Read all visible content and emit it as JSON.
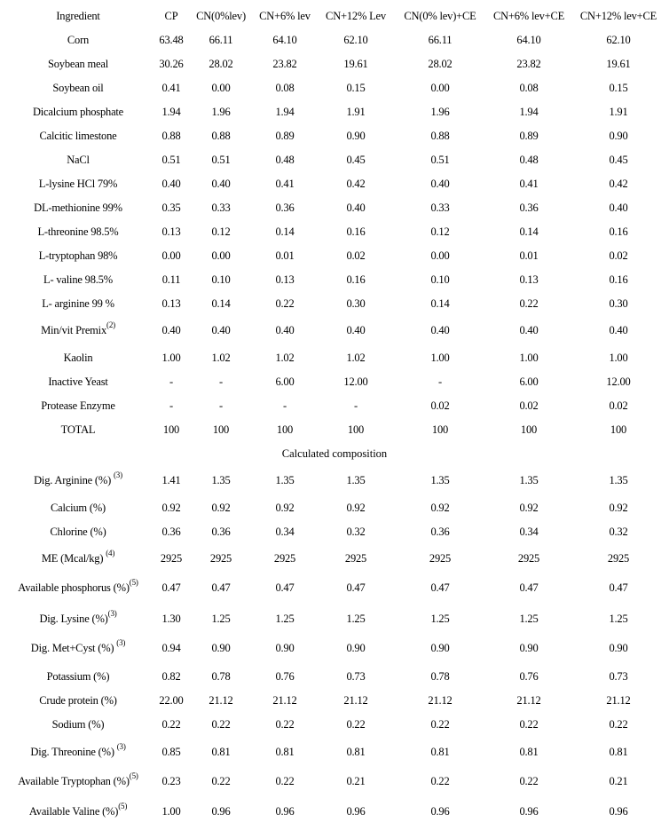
{
  "table": {
    "headers": [
      "Ingredient",
      "CP",
      "CN(0%lev)",
      "CN+6% lev",
      "CN+12% Lev",
      "CN(0% lev)+CE",
      "CN+6% lev+CE",
      "CN+12% lev+CE"
    ],
    "ingredients": [
      {
        "label": "Corn",
        "note": "",
        "values": [
          "63.48",
          "66.11",
          "64.10",
          "62.10",
          "66.11",
          "64.10",
          "62.10"
        ]
      },
      {
        "label": "Soybean meal",
        "note": "",
        "values": [
          "30.26",
          "28.02",
          "23.82",
          "19.61",
          "28.02",
          "23.82",
          "19.61"
        ]
      },
      {
        "label": "Soybean oil",
        "note": "",
        "values": [
          "0.41",
          "0.00",
          "0.08",
          "0.15",
          "0.00",
          "0.08",
          "0.15"
        ]
      },
      {
        "label": "Dicalcium phosphate",
        "note": "",
        "values": [
          "1.94",
          "1.96",
          "1.94",
          "1.91",
          "1.96",
          "1.94",
          "1.91"
        ]
      },
      {
        "label": "Calcitic limestone",
        "note": "",
        "values": [
          "0.88",
          "0.88",
          "0.89",
          "0.90",
          "0.88",
          "0.89",
          "0.90"
        ]
      },
      {
        "label": "NaCl",
        "note": "",
        "values": [
          "0.51",
          "0.51",
          "0.48",
          "0.45",
          "0.51",
          "0.48",
          "0.45"
        ]
      },
      {
        "label": "L-lysine HCl 79%",
        "note": "",
        "values": [
          "0.40",
          "0.40",
          "0.41",
          "0.42",
          "0.40",
          "0.41",
          "0.42"
        ]
      },
      {
        "label": "DL-methionine 99%",
        "note": "",
        "values": [
          "0.35",
          "0.33",
          "0.36",
          "0.40",
          "0.33",
          "0.36",
          "0.40"
        ]
      },
      {
        "label": "L-threonine 98.5%",
        "note": "",
        "values": [
          "0.13",
          "0.12",
          "0.14",
          "0.16",
          "0.12",
          "0.14",
          "0.16"
        ]
      },
      {
        "label": "L-tryptophan 98%",
        "note": "",
        "values": [
          "0.00",
          "0.00",
          "0.01",
          "0.02",
          "0.00",
          "0.01",
          "0.02"
        ]
      },
      {
        "label": "L- valine 98.5%",
        "note": "",
        "values": [
          "0.11",
          "0.10",
          "0.13",
          "0.16",
          "0.10",
          "0.13",
          "0.16"
        ]
      },
      {
        "label": "L- arginine 99 %",
        "note": "",
        "values": [
          "0.13",
          "0.14",
          "0.22",
          "0.30",
          "0.14",
          "0.22",
          "0.30"
        ]
      },
      {
        "label": "Min/vit Premix",
        "note": "(2)",
        "values": [
          "0.40",
          "0.40",
          "0.40",
          "0.40",
          "0.40",
          "0.40",
          "0.40"
        ]
      },
      {
        "label": "Kaolin",
        "note": "",
        "values": [
          "1.00",
          "1.02",
          "1.02",
          "1.02",
          "1.00",
          "1.00",
          "1.00"
        ]
      },
      {
        "label": "Inactive Yeast",
        "note": "",
        "values": [
          "-",
          "-",
          "6.00",
          "12.00",
          "-",
          "6.00",
          "12.00"
        ]
      },
      {
        "label": "Protease Enzyme",
        "note": "",
        "values": [
          "-",
          "-",
          "-",
          "-",
          "0.02",
          "0.02",
          "0.02"
        ]
      },
      {
        "label": "TOTAL",
        "note": "",
        "values": [
          "100",
          "100",
          "100",
          "100",
          "100",
          "100",
          "100"
        ]
      }
    ],
    "section_title": "Calculated composition",
    "composition": [
      {
        "label": "Dig. Arginine (%) ",
        "note": "(3)",
        "values": [
          "1.41",
          "1.35",
          "1.35",
          "1.35",
          "1.35",
          "1.35",
          "1.35"
        ]
      },
      {
        "label": "Calcium (%)",
        "note": "",
        "values": [
          "0.92",
          "0.92",
          "0.92",
          "0.92",
          "0.92",
          "0.92",
          "0.92"
        ]
      },
      {
        "label": "Chlorine (%)",
        "note": "",
        "values": [
          "0.36",
          "0.36",
          "0.34",
          "0.32",
          "0.36",
          "0.34",
          "0.32"
        ]
      },
      {
        "label": "ME (Mcal/kg) ",
        "note": "(4)",
        "values": [
          "2925",
          "2925",
          "2925",
          "2925",
          "2925",
          "2925",
          "2925"
        ]
      },
      {
        "label": "Available phosphorus (%)",
        "note": "(5)",
        "values": [
          "0.47",
          "0.47",
          "0.47",
          "0.47",
          "0.47",
          "0.47",
          "0.47"
        ]
      },
      {
        "label": "Dig. Lysine (%)",
        "note": "(3)",
        "values": [
          "1.30",
          "1.25",
          "1.25",
          "1.25",
          "1.25",
          "1.25",
          "1.25"
        ]
      },
      {
        "label": "Dig. Met+Cyst (%) ",
        "note": "(3)",
        "values": [
          "0.94",
          "0.90",
          "0.90",
          "0.90",
          "0.90",
          "0.90",
          "0.90"
        ]
      },
      {
        "label": "Potassium (%)",
        "note": "",
        "values": [
          "0.82",
          "0.78",
          "0.76",
          "0.73",
          "0.78",
          "0.76",
          "0.73"
        ]
      },
      {
        "label": "Crude protein (%)",
        "note": "",
        "values": [
          "22.00",
          "21.12",
          "21.12",
          "21.12",
          "21.12",
          "21.12",
          "21.12"
        ]
      },
      {
        "label": "Sodium (%)",
        "note": "",
        "values": [
          "0.22",
          "0.22",
          "0.22",
          "0.22",
          "0.22",
          "0.22",
          "0.22"
        ]
      },
      {
        "label": "Dig. Threonine (%) ",
        "note": "(3)",
        "values": [
          "0.85",
          "0.81",
          "0.81",
          "0.81",
          "0.81",
          "0.81",
          "0.81"
        ]
      },
      {
        "label": "Available Tryptophan (%)",
        "note": "(5)",
        "values": [
          "0.23",
          "0.22",
          "0.22",
          "0.21",
          "0.22",
          "0.22",
          "0.21"
        ]
      },
      {
        "label": "Available Valine (%)",
        "note": "(5)",
        "values": [
          "1.00",
          "0.96",
          "0.96",
          "0.96",
          "0.96",
          "0.96",
          "0.96"
        ]
      }
    ]
  }
}
